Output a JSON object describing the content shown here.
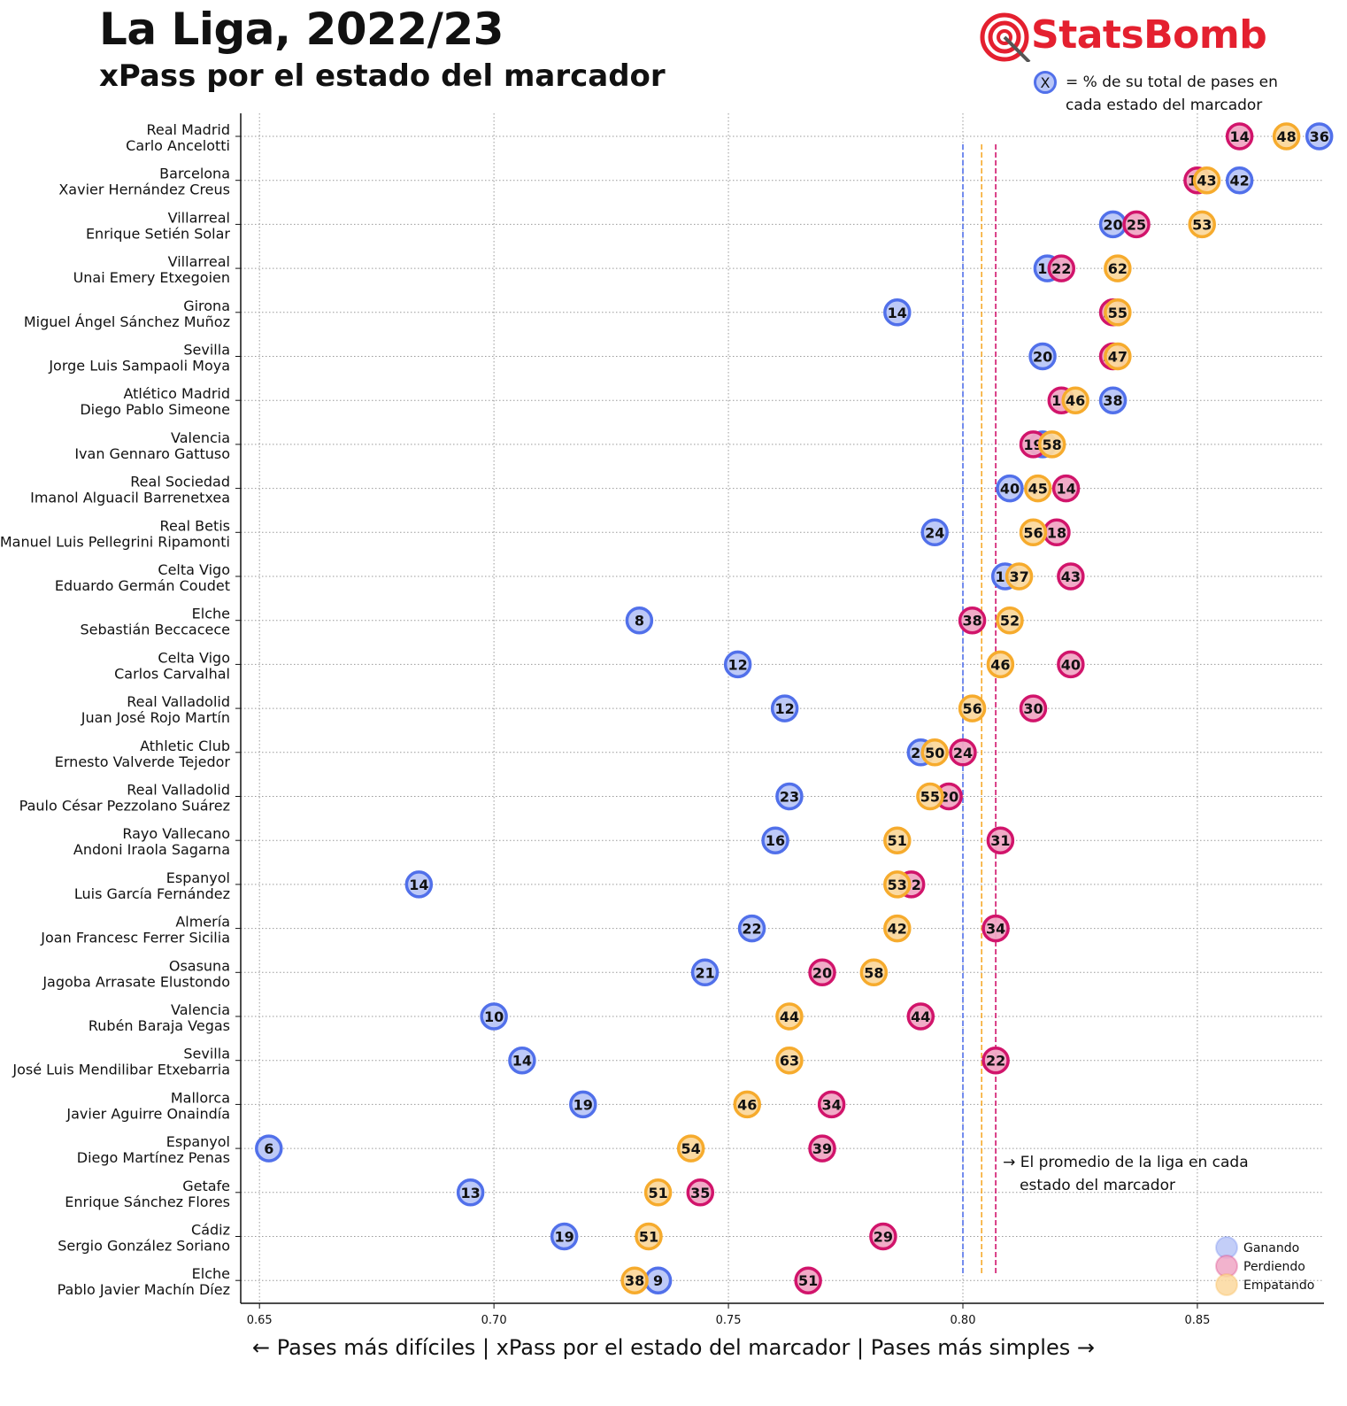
{
  "title": "La Liga, 2022/23",
  "subtitle": "xPass por el estado del marcador",
  "brand": {
    "name": "StatsBomb",
    "color": "#e4202f"
  },
  "note": {
    "chip": "X",
    "text": "= % de su total de pases en cada estado del marcador"
  },
  "chart_data": {
    "type": "scatter",
    "xlabel": "← Pases más difíciles | xPass por el estado del marcador | Pases más simples →",
    "xlim": [
      0.646,
      0.877
    ],
    "xticks": [
      0.65,
      0.7,
      0.75,
      0.8,
      0.85
    ],
    "xtick_labels": [
      "0.65",
      "0.70",
      "0.75",
      "0.80",
      "0.85"
    ],
    "grid": true,
    "legend_position": "bottom-right",
    "series": [
      {
        "name": "Ganando",
        "key": "g",
        "color": "#5170ea",
        "fill": "#b9c6f7",
        "league_avg": 0.8
      },
      {
        "name": "Perdiendo",
        "key": "p",
        "color": "#d1146b",
        "fill": "#f0a6c4",
        "league_avg": 0.807
      },
      {
        "name": "Empatando",
        "key": "e",
        "color": "#f6ab2d",
        "fill": "#fbd89d",
        "league_avg": 0.804
      }
    ],
    "annotation": {
      "x": 0.807,
      "text": [
        "→ El promedio de la liga en cada",
        "estado del marcador"
      ]
    },
    "rows": [
      {
        "team": "Real Madrid",
        "coach": "Carlo Ancelotti",
        "g": [
          0.876,
          36
        ],
        "p": [
          0.859,
          14
        ],
        "e": [
          0.869,
          48
        ]
      },
      {
        "team": "Barcelona",
        "coach": "Xavier Hernández Creus",
        "g": [
          0.859,
          42
        ],
        "p": [
          0.85,
          14
        ],
        "e": [
          0.852,
          43
        ]
      },
      {
        "team": "Villarreal",
        "coach": "Enrique Setién Solar",
        "g": [
          0.832,
          20
        ],
        "p": [
          0.837,
          25
        ],
        "e": [
          0.851,
          53
        ]
      },
      {
        "team": "Villarreal",
        "coach": "Unai Emery Etxegoien",
        "g": [
          0.818,
          14
        ],
        "p": [
          0.821,
          22
        ],
        "e": [
          0.833,
          62
        ]
      },
      {
        "team": "Girona",
        "coach": "Miguel Ángel Sánchez Muñoz",
        "g": [
          0.786,
          14
        ],
        "p": [
          0.832,
          30
        ],
        "e": [
          0.833,
          55
        ]
      },
      {
        "team": "Sevilla",
        "coach": "Jorge Luis Sampaoli Moya",
        "g": [
          0.817,
          20
        ],
        "p": [
          0.832,
          32
        ],
        "e": [
          0.833,
          47
        ]
      },
      {
        "team": "Atlético Madrid",
        "coach": "Diego Pablo Simeone",
        "g": [
          0.832,
          38
        ],
        "p": [
          0.821,
          14
        ],
        "e": [
          0.824,
          46
        ]
      },
      {
        "team": "Valencia",
        "coach": "Ivan Gennaro Gattuso",
        "g": [
          0.817,
          22
        ],
        "p": [
          0.815,
          19
        ],
        "e": [
          0.819,
          58
        ]
      },
      {
        "team": "Real Sociedad",
        "coach": "Imanol Alguacil Barrenetxea",
        "g": [
          0.81,
          40
        ],
        "p": [
          0.822,
          14
        ],
        "e": [
          0.816,
          45
        ]
      },
      {
        "team": "Real Betis",
        "coach": "Manuel Luis Pellegrini Ripamonti",
        "g": [
          0.794,
          24
        ],
        "p": [
          0.82,
          18
        ],
        "e": [
          0.815,
          56
        ]
      },
      {
        "team": "Celta Vigo",
        "coach": "Eduardo Germán Coudet",
        "g": [
          0.809,
          19
        ],
        "p": [
          0.823,
          43
        ],
        "e": [
          0.812,
          37
        ]
      },
      {
        "team": "Elche",
        "coach": "Sebastián Beccacece",
        "g": [
          0.731,
          8
        ],
        "p": [
          0.802,
          38
        ],
        "e": [
          0.81,
          52
        ]
      },
      {
        "team": "Celta Vigo",
        "coach": "Carlos Carvalhal",
        "g": [
          0.752,
          12
        ],
        "p": [
          0.823,
          40
        ],
        "e": [
          0.808,
          46
        ]
      },
      {
        "team": "Real Valladolid",
        "coach": "Juan José Rojo Martín",
        "g": [
          0.762,
          12
        ],
        "p": [
          0.815,
          30
        ],
        "e": [
          0.802,
          56
        ]
      },
      {
        "team": "Athletic Club",
        "coach": "Ernesto Valverde Tejedor",
        "g": [
          0.791,
          24
        ],
        "p": [
          0.8,
          24
        ],
        "e": [
          0.794,
          50
        ]
      },
      {
        "team": "Real Valladolid",
        "coach": "Paulo César Pezzolano Suárez",
        "g": [
          0.763,
          23
        ],
        "p": [
          0.797,
          20
        ],
        "e": [
          0.793,
          55
        ]
      },
      {
        "team": "Rayo Vallecano",
        "coach": "Andoni Iraola Sagarna",
        "g": [
          0.76,
          16
        ],
        "p": [
          0.808,
          31
        ],
        "e": [
          0.786,
          51
        ]
      },
      {
        "team": "Espanyol",
        "coach": "Luis García Fernández",
        "g": [
          0.684,
          14
        ],
        "p": [
          0.789,
          32
        ],
        "e": [
          0.786,
          53
        ]
      },
      {
        "team": "Almería",
        "coach": "Joan Francesc Ferrer Sicilia",
        "g": [
          0.755,
          22
        ],
        "p": [
          0.807,
          34
        ],
        "e": [
          0.786,
          42
        ]
      },
      {
        "team": "Osasuna",
        "coach": "Jagoba Arrasate Elustondo",
        "g": [
          0.745,
          21
        ],
        "p": [
          0.77,
          20
        ],
        "e": [
          0.781,
          58
        ]
      },
      {
        "team": "Valencia",
        "coach": "Rubén Baraja Vegas",
        "g": [
          0.7,
          10
        ],
        "p": [
          0.791,
          44
        ],
        "e": [
          0.763,
          44
        ]
      },
      {
        "team": "Sevilla",
        "coach": "José Luis Mendilibar Etxebarria",
        "g": [
          0.706,
          14
        ],
        "p": [
          0.807,
          22
        ],
        "e": [
          0.763,
          63
        ]
      },
      {
        "team": "Mallorca",
        "coach": "Javier Aguirre Onaindía",
        "g": [
          0.719,
          19
        ],
        "p": [
          0.772,
          34
        ],
        "e": [
          0.754,
          46
        ]
      },
      {
        "team": "Espanyol",
        "coach": "Diego Martínez Penas",
        "g": [
          0.652,
          6
        ],
        "p": [
          0.77,
          39
        ],
        "e": [
          0.742,
          54
        ]
      },
      {
        "team": "Getafe",
        "coach": "Enrique Sánchez Flores",
        "g": [
          0.695,
          13
        ],
        "p": [
          0.744,
          35
        ],
        "e": [
          0.735,
          51
        ]
      },
      {
        "team": "Cádiz",
        "coach": "Sergio González Soriano",
        "g": [
          0.715,
          19
        ],
        "p": [
          0.783,
          29
        ],
        "e": [
          0.733,
          51
        ]
      },
      {
        "team": "Elche",
        "coach": "Pablo Javier Machín Díez",
        "g": [
          0.735,
          9
        ],
        "p": [
          0.767,
          51
        ],
        "e": [
          0.73,
          38
        ]
      }
    ]
  }
}
